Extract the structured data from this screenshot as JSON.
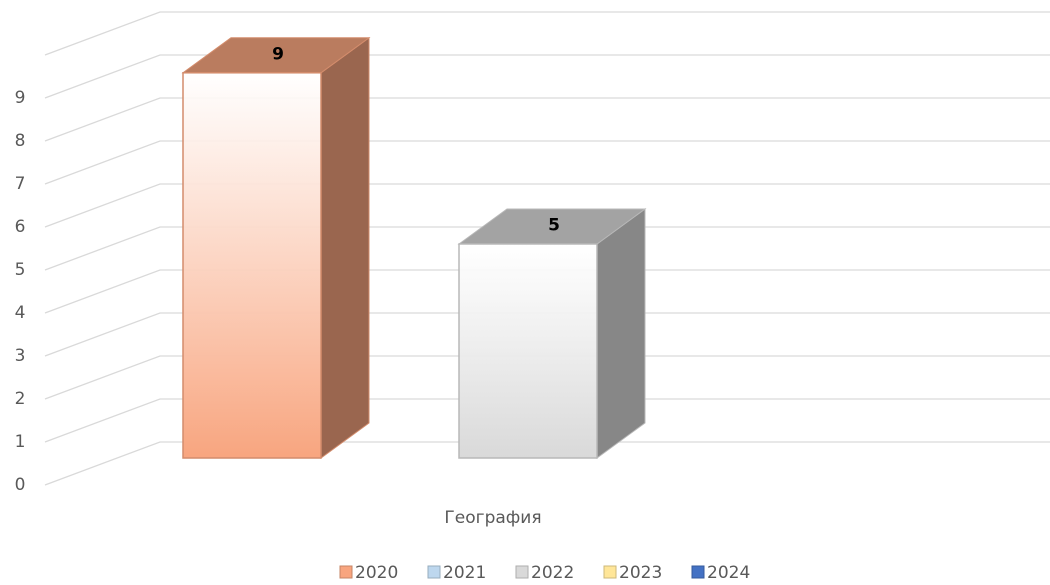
{
  "chart_data": {
    "type": "bar3d",
    "categories": [
      "География"
    ],
    "series": [
      {
        "name": "2020",
        "color": "#f8a57f",
        "values": [
          9
        ]
      },
      {
        "name": "2021",
        "color": "#bdd7ee",
        "values": [
          null
        ]
      },
      {
        "name": "2022",
        "color": "#d9d9d9",
        "values": [
          5
        ]
      },
      {
        "name": "2023",
        "color": "#ffe699",
        "values": [
          null
        ]
      },
      {
        "name": "2024",
        "color": "#4472c4",
        "values": [
          null
        ]
      }
    ],
    "ylim": [
      0,
      10
    ],
    "yticks": [
      0,
      1,
      2,
      3,
      4,
      5,
      6,
      7,
      8,
      9
    ],
    "grid": true,
    "legend": "bottom"
  }
}
